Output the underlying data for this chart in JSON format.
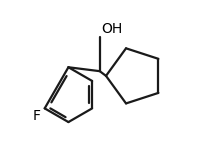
{
  "background_color": "#ffffff",
  "line_color": "#1a1a1a",
  "line_width": 1.6,
  "text_color": "#000000",
  "figsize": [
    2.12,
    1.58
  ],
  "dpi": 100,
  "xlim": [
    0,
    1
  ],
  "ylim": [
    0,
    1
  ],
  "oh_label": "OH",
  "f_label": "F",
  "oh_fontsize": 10,
  "f_fontsize": 10
}
